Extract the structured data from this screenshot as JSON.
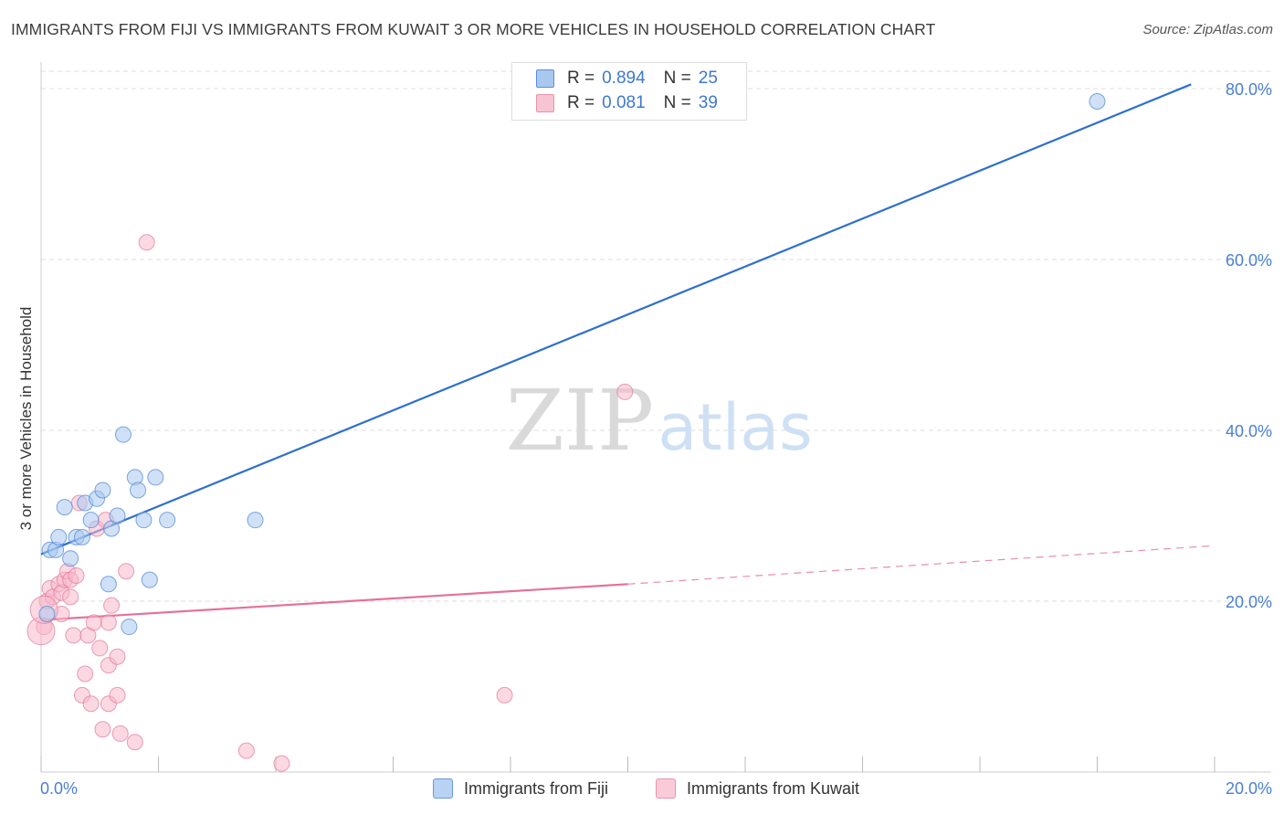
{
  "title": "IMMIGRANTS FROM FIJI VS IMMIGRANTS FROM KUWAIT 3 OR MORE VEHICLES IN HOUSEHOLD CORRELATION CHART",
  "source": "Source: ZipAtlas.com",
  "watermark": {
    "zip": "ZIP",
    "atlas": "atlas"
  },
  "legend": {
    "rows": [
      {
        "r_label": "R =",
        "r_value": "0.894",
        "n_label": "N =",
        "n_value": "25"
      },
      {
        "r_label": "R =",
        "r_value": "0.081",
        "n_label": "N =",
        "n_value": "39"
      }
    ]
  },
  "colors": {
    "fiji_fill": "#a9c8f0",
    "fiji_stroke": "#5b8fd8",
    "fiji_line": "#2e6fcc",
    "kuwait_fill": "#f7b8cb",
    "kuwait_stroke": "#e07898",
    "kuwait_line": "#e4719a",
    "grid": "#dddddd",
    "tick_label": "#4a7fd4"
  },
  "chart_data": {
    "type": "scatter",
    "title": "IMMIGRANTS FROM FIJI VS IMMIGRANTS FROM KUWAIT 3 OR MORE VEHICLES IN HOUSEHOLD CORRELATION CHART",
    "xlabel": "",
    "ylabel": "3 or more Vehicles in Household",
    "xlim": [
      0,
      20
    ],
    "ylim": [
      0,
      80
    ],
    "x_tick_labels": [
      "0.0%",
      "20.0%"
    ],
    "y_tick_labels": [
      "80.0%",
      "60.0%",
      "40.0%",
      "20.0%"
    ],
    "y_tick_values": [
      80,
      60,
      40,
      20
    ],
    "series": [
      {
        "name": "Immigrants from Fiji",
        "r": 0.894,
        "n": 25,
        "points": [
          [
            0.1,
            18.5
          ],
          [
            0.15,
            26.0
          ],
          [
            0.25,
            26.0
          ],
          [
            0.3,
            27.5
          ],
          [
            0.4,
            31.0
          ],
          [
            0.5,
            25.0
          ],
          [
            0.6,
            27.5
          ],
          [
            0.7,
            27.5
          ],
          [
            0.75,
            31.5
          ],
          [
            0.85,
            29.5
          ],
          [
            0.95,
            32.0
          ],
          [
            1.05,
            33.0
          ],
          [
            1.15,
            22.0
          ],
          [
            1.2,
            28.5
          ],
          [
            1.3,
            30.0
          ],
          [
            1.4,
            39.5
          ],
          [
            1.5,
            17.0
          ],
          [
            1.6,
            34.5
          ],
          [
            1.65,
            33.0
          ],
          [
            1.75,
            29.5
          ],
          [
            1.85,
            22.5
          ],
          [
            1.95,
            34.5
          ],
          [
            2.15,
            29.5
          ],
          [
            3.65,
            29.5
          ],
          [
            18.0,
            78.5
          ]
        ],
        "trend": {
          "x": [
            0,
            19.6
          ],
          "y": [
            25.5,
            80.5
          ]
        }
      },
      {
        "name": "Immigrants from Kuwait",
        "r": 0.081,
        "n": 39,
        "points": [
          [
            0.05,
            17.0
          ],
          [
            0.1,
            20.0
          ],
          [
            0.15,
            21.5
          ],
          [
            0.2,
            20.5
          ],
          [
            0.3,
            22.0
          ],
          [
            0.35,
            21.0
          ],
          [
            0.4,
            22.5
          ],
          [
            0.35,
            18.5
          ],
          [
            0.45,
            23.5
          ],
          [
            0.5,
            22.5
          ],
          [
            0.5,
            20.5
          ],
          [
            0.55,
            16.0
          ],
          [
            0.6,
            23.0
          ],
          [
            0.65,
            31.5
          ],
          [
            0.75,
            11.5
          ],
          [
            0.7,
            9.0
          ],
          [
            0.8,
            16.0
          ],
          [
            0.85,
            8.0
          ],
          [
            0.9,
            17.5
          ],
          [
            0.95,
            28.5
          ],
          [
            1.0,
            14.5
          ],
          [
            1.05,
            5.0
          ],
          [
            1.1,
            29.5
          ],
          [
            1.15,
            17.5
          ],
          [
            1.15,
            8.0
          ],
          [
            1.15,
            12.5
          ],
          [
            1.2,
            19.5
          ],
          [
            1.3,
            13.5
          ],
          [
            1.3,
            9.0
          ],
          [
            1.35,
            4.5
          ],
          [
            1.45,
            23.5
          ],
          [
            1.6,
            3.5
          ],
          [
            1.8,
            62.0
          ],
          [
            3.5,
            2.5
          ],
          [
            4.1,
            1.0
          ],
          [
            7.9,
            9.0
          ],
          [
            9.95,
            44.5
          ],
          [
            0.0,
            16.5
          ],
          [
            0.05,
            19.0
          ]
        ],
        "trend_solid": {
          "x": [
            0,
            10.0
          ],
          "y": [
            17.8,
            22.0
          ]
        },
        "trend_dashed": {
          "x": [
            10.0,
            20.0
          ],
          "y": [
            22.0,
            26.5
          ]
        }
      }
    ],
    "legend_entries": [
      "Immigrants from Fiji",
      "Immigrants from Kuwait"
    ]
  }
}
